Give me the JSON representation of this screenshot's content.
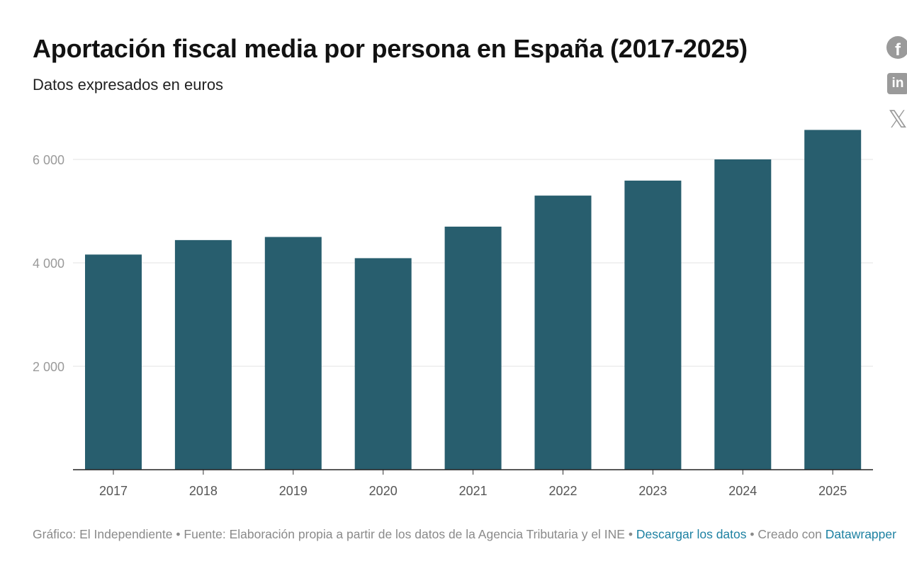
{
  "chart_data": {
    "type": "bar",
    "title": "Aportación fiscal media por persona en España (2017-2025)",
    "subtitle": "Datos expresados en euros",
    "categories": [
      "2017",
      "2018",
      "2019",
      "2020",
      "2021",
      "2022",
      "2023",
      "2024",
      "2025"
    ],
    "values": [
      4160,
      4440,
      4500,
      4090,
      4700,
      5300,
      5590,
      6000,
      6570
    ],
    "xlabel": "",
    "ylabel": "",
    "ylim": [
      0,
      6800
    ],
    "yticks": [
      2000,
      4000,
      6000
    ],
    "ytick_labels": [
      "2 000",
      "4 000",
      "6 000"
    ],
    "grid": true,
    "bar_color": "#285e6e"
  },
  "footer": {
    "credit": "Gráfico: El Independiente",
    "source": "Fuente: Elaboración propia a partir de los datos de la Agencia Tributaria y el INE",
    "download_link": "Descargar los datos",
    "created_with": "Creado con",
    "tool_link": "Datawrapper",
    "separator": "•"
  },
  "share": {
    "facebook_icon": "facebook-icon",
    "linkedin_icon": "linkedin-icon",
    "x_icon": "x-icon"
  }
}
